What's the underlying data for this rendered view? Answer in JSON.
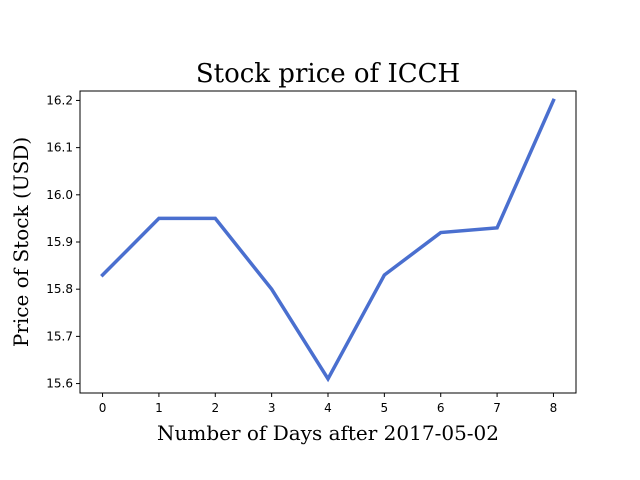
{
  "chart_data": {
    "type": "line",
    "title": "Stock price of ICCH",
    "xlabel": "Number of Days after 2017-05-02",
    "ylabel": "Price of Stock (USD)",
    "xlim": [
      -0.4,
      8.4
    ],
    "ylim": [
      15.58,
      16.22
    ],
    "x_ticks": [
      0,
      1,
      2,
      3,
      4,
      5,
      6,
      7,
      8
    ],
    "y_ticks": [
      15.6,
      15.7,
      15.8,
      15.9,
      16.0,
      16.1,
      16.2
    ],
    "y_tick_labels": [
      "15.6",
      "15.7",
      "15.8",
      "15.9",
      "16.0",
      "16.1",
      "16.2"
    ],
    "grid": false,
    "series": [
      {
        "x": [
          0,
          1,
          2,
          3,
          4,
          5,
          6,
          7,
          8
        ],
        "y": [
          15.83,
          15.95,
          15.95,
          15.8,
          15.61,
          15.83,
          15.92,
          15.93,
          16.2
        ],
        "color": "#4a6fcf"
      }
    ]
  }
}
